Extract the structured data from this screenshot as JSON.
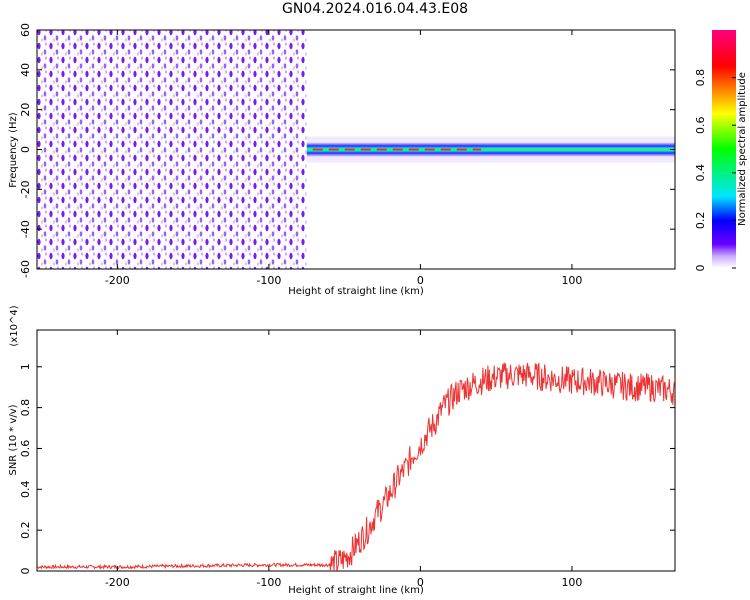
{
  "page_title": "GN04.2024.016.04.43.E08",
  "chart_data": [
    {
      "type": "heatmap",
      "title": "",
      "xlabel": "Height of straight line (km)",
      "ylabel": "Frequency (Hz)",
      "xlim": [
        -253,
        168
      ],
      "ylim": [
        -60,
        60
      ],
      "xticks": [
        -200,
        -100,
        0,
        100
      ],
      "yticks": [
        -60,
        -40,
        -20,
        0,
        20,
        40,
        60
      ],
      "noise_region_x": [
        -253,
        -75
      ],
      "signal_region_x": [
        -75,
        168
      ],
      "signal_center_frequency_hz": 0,
      "colorbar": {
        "label": "Normalized spectral amplitude",
        "range": [
          0.0,
          1.0
        ],
        "ticks": [
          0.0,
          0.2,
          0.4,
          0.6,
          0.8
        ],
        "colors": [
          "#ffffff",
          "#c9a8ff",
          "#6a00ff",
          "#0000ff",
          "#00e5ff",
          "#00ff00",
          "#ffff00",
          "#ff8000",
          "#ff0000",
          "#ff0080"
        ]
      }
    },
    {
      "type": "line",
      "title": "",
      "xlabel": "Height of straight line (km)",
      "ylabel": "SNR (10 * v/v)",
      "y_multiplier": "(x10^4)",
      "xlim": [
        -253,
        168
      ],
      "ylim": [
        0.0,
        1.18
      ],
      "xticks": [
        -200,
        -100,
        0,
        100
      ],
      "yticks": [
        0.0,
        0.2,
        0.4,
        0.6,
        0.8,
        1.0
      ],
      "color": "#ee3333",
      "series": [
        {
          "x": [
            -253,
            -200,
            -150,
            -100,
            -75,
            -60,
            -55,
            -50,
            -45,
            -40,
            -35,
            -30,
            -25,
            -20,
            -15,
            -10,
            -5,
            0,
            5,
            10,
            15,
            20,
            25,
            30,
            40,
            50,
            60,
            70,
            80,
            90,
            100,
            110,
            120,
            130,
            140,
            150,
            160,
            168
          ],
          "y": [
            0.02,
            0.02,
            0.025,
            0.03,
            0.03,
            0.03,
            0.04,
            0.06,
            0.1,
            0.15,
            0.2,
            0.27,
            0.32,
            0.38,
            0.45,
            0.5,
            0.57,
            0.62,
            0.68,
            0.73,
            0.8,
            0.84,
            0.88,
            0.9,
            0.93,
            0.95,
            0.96,
            0.96,
            0.95,
            0.94,
            0.93,
            0.93,
            0.92,
            0.91,
            0.9,
            0.9,
            0.89,
            0.88
          ]
        }
      ]
    }
  ]
}
